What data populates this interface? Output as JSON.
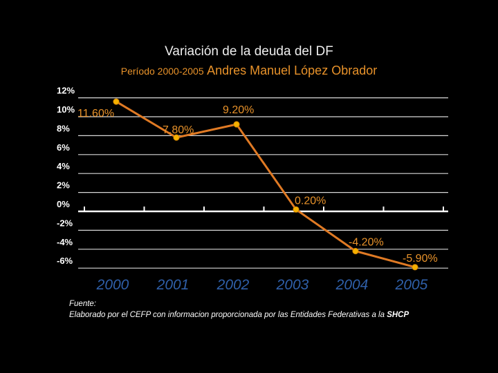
{
  "chart_data": {
    "type": "line",
    "title": "Variación de la deuda del DF",
    "subtitle_period": "Período 2000-2005",
    "subtitle_name": "Andres Manuel López Obrador",
    "categories": [
      "2000",
      "2001",
      "2002",
      "2003",
      "2004",
      "2005"
    ],
    "series": [
      {
        "values": [
          11.6,
          7.8,
          9.2,
          0.2,
          -4.2,
          -5.9
        ],
        "labels": [
          "11.60%",
          "7.80%",
          "9.20%",
          "0.20%",
          "-4.20%",
          "-5.90%"
        ]
      }
    ],
    "yticks": [
      "12%",
      "10%",
      "8%",
      "6%",
      "4%",
      "2%",
      "0%",
      "-2%",
      "-4%",
      "-6%"
    ],
    "ylim": [
      -6,
      12
    ],
    "grid": true,
    "colors": {
      "line": "#e07a24",
      "marker": "#f5b000",
      "label": "#e8922a",
      "year": "#2f5fa8",
      "grid": "#ffffff"
    }
  },
  "footer": {
    "source_label": "Fuente:",
    "note_prefix": "Elaborado por el CEFP con informacion proporcionada por las Entidades Federativas a la ",
    "note_bold": "SHCP"
  }
}
